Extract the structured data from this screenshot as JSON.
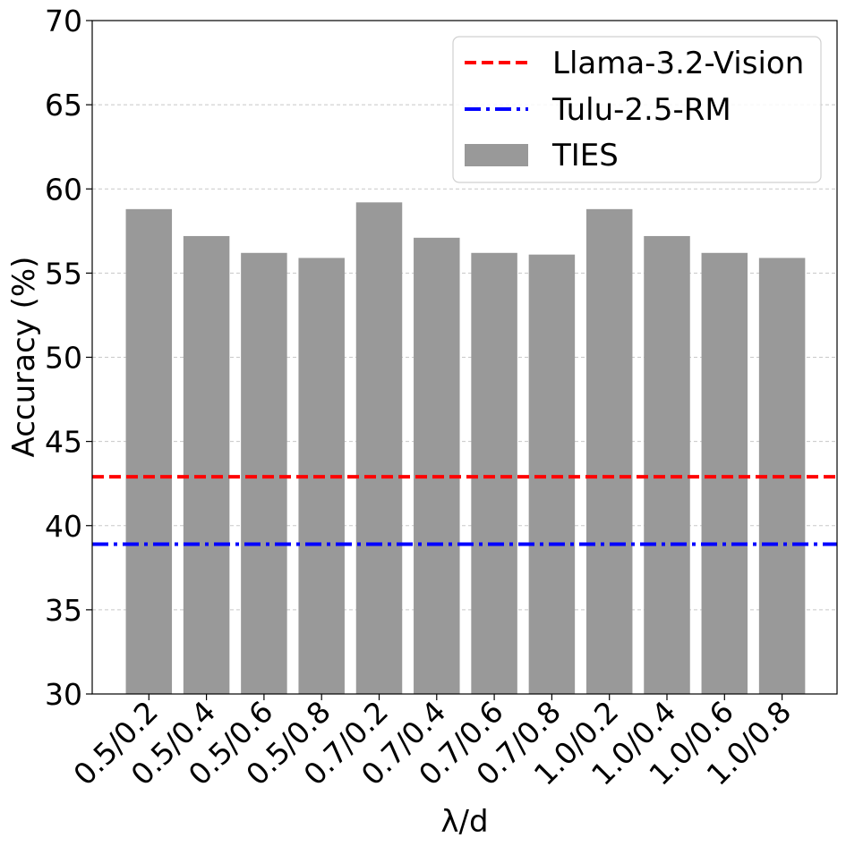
{
  "chart_data": {
    "type": "bar",
    "title": "",
    "xlabel": "λ/d",
    "ylabel": "Accuracy (%)",
    "ylim": [
      30,
      70
    ],
    "yticks": [
      30,
      35,
      40,
      45,
      50,
      55,
      60,
      65,
      70
    ],
    "grid": "horizontal dashed",
    "legend_position": "top-right",
    "categories": [
      "0.5/0.2",
      "0.5/0.4",
      "0.5/0.6",
      "0.5/0.8",
      "0.7/0.2",
      "0.7/0.4",
      "0.7/0.6",
      "0.7/0.8",
      "1.0/0.2",
      "1.0/0.4",
      "1.0/0.6",
      "1.0/0.8"
    ],
    "series": [
      {
        "name": "TIES",
        "type": "bar",
        "color": "#999999",
        "values": [
          58.8,
          57.2,
          56.2,
          55.9,
          59.2,
          57.1,
          56.2,
          56.1,
          58.8,
          57.2,
          56.2,
          55.9
        ]
      }
    ],
    "reference_lines": [
      {
        "name": "Llama-3.2-Vision",
        "value": 42.9,
        "color": "#ff0000",
        "style": "dashed"
      },
      {
        "name": "Tulu-2.5-RM",
        "value": 38.9,
        "color": "#0000ff",
        "style": "dashdot"
      }
    ],
    "legend": [
      "Llama-3.2-Vision",
      "Tulu-2.5-RM",
      "TIES"
    ]
  }
}
